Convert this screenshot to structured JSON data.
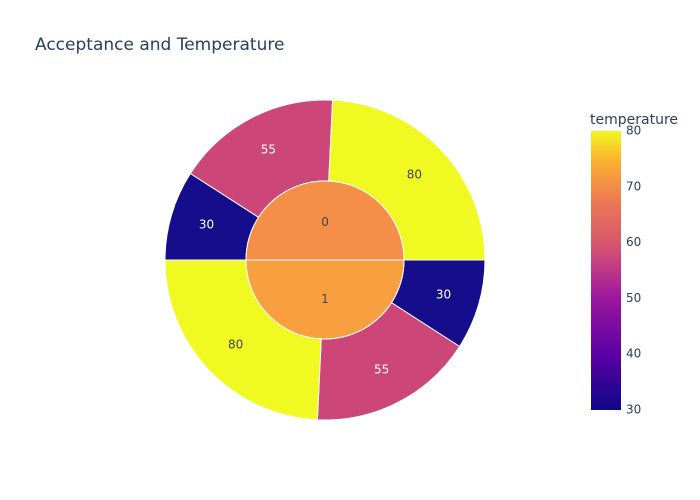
{
  "chart_data": {
    "type": "sunburst",
    "title": "Acceptance and Temperature",
    "colorbar": {
      "title": "temperature",
      "range": [
        30,
        80
      ],
      "ticks": [
        "30",
        "40",
        "50",
        "60",
        "70",
        "80"
      ]
    },
    "inner": [
      {
        "label": "0",
        "color_value": 63.3
      },
      {
        "label": "1",
        "color_value": 66.7
      }
    ],
    "outer": [
      {
        "parent": "0",
        "label": "80",
        "value": 80
      },
      {
        "parent": "0",
        "label": "55",
        "value": 55
      },
      {
        "parent": "0",
        "label": "30",
        "value": 30
      },
      {
        "parent": "1",
        "label": "80",
        "value": 80
      },
      {
        "parent": "1",
        "label": "55",
        "value": 55
      },
      {
        "parent": "1",
        "label": "30",
        "value": 30
      }
    ],
    "colors": {
      "c30": "#160d8c",
      "c55": "#cc4778",
      "c80": "#f0f921",
      "inner0": "#f58f47",
      "inner1": "#f89f3f"
    }
  }
}
